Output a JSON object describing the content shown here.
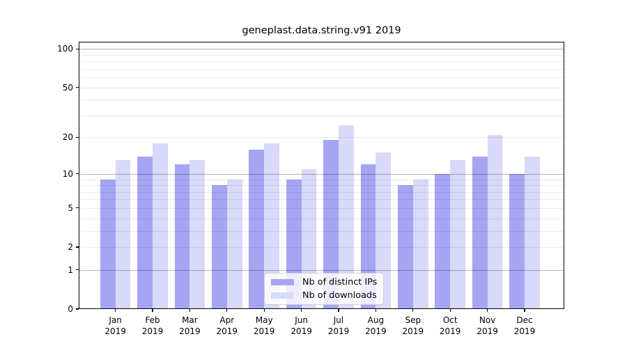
{
  "chart_data": {
    "type": "bar",
    "title": "geneplast.data.string.v91 2019",
    "months": [
      "Jan",
      "Feb",
      "Mar",
      "Apr",
      "May",
      "Jun",
      "Jul",
      "Aug",
      "Sep",
      "Oct",
      "Nov",
      "Dec"
    ],
    "year": "2019",
    "series": [
      {
        "name": "Nb of distinct IPs",
        "color": "#a5a5f3",
        "values": [
          9,
          14,
          12,
          8,
          16,
          9,
          19,
          12,
          8,
          10,
          14,
          10
        ]
      },
      {
        "name": "Nb of downloads",
        "color": "#d9d9fa",
        "values": [
          13,
          18,
          13,
          9,
          18,
          11,
          25,
          15,
          9,
          13,
          21,
          14
        ]
      }
    ],
    "yscale": "log1p",
    "ylim": [
      0,
      112
    ],
    "yticks": [
      0,
      1,
      2,
      5,
      10,
      20,
      50,
      100
    ],
    "gridlines": {
      "major": [
        1,
        10,
        100
      ],
      "minor": [
        2,
        3,
        4,
        5,
        6,
        7,
        8,
        9,
        20,
        30,
        40,
        50,
        60,
        70,
        80,
        90
      ]
    },
    "legend_position": "lower center",
    "grid": true,
    "axis_color": "#000000",
    "background_color": "#ffffff"
  }
}
